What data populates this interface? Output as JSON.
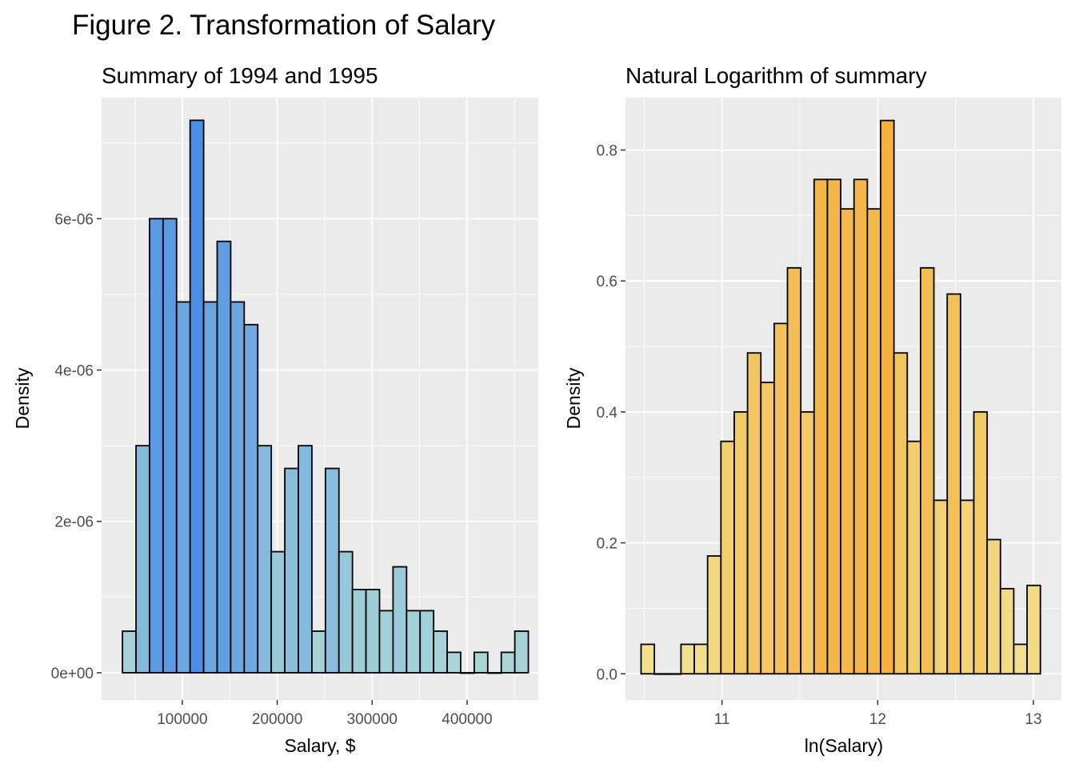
{
  "figure_title": "Figure 2. Transformation of Salary",
  "colors": {
    "panel_bg": "#ebebeb",
    "grid": "#ffffff",
    "bar_outline": "#000000",
    "left_low": "#add8d6",
    "left_high": "#4a8ee6",
    "right_low": "#f0e290",
    "right_high": "#f5b040"
  },
  "chart_data": [
    {
      "type": "bar",
      "histogram": true,
      "title": "Summary of 1994 and 1995",
      "xlabel": "Salary, $",
      "ylabel": "Density",
      "xlim": [
        15000,
        475000
      ],
      "ylim": [
        -3.6e-07,
        7.6e-06
      ],
      "xticks": [
        100000,
        200000,
        300000,
        400000
      ],
      "xtick_labels": [
        "100000",
        "200000",
        "300000",
        "400000"
      ],
      "yticks": [
        0,
        2e-06,
        4e-06,
        6e-06
      ],
      "ytick_labels": [
        "0e+00",
        "2e-06",
        "4e-06",
        "6e-06"
      ],
      "grid": true,
      "fill_gradient": [
        "#add8d6",
        "#4a8ee6"
      ],
      "bin_width": 14250,
      "bin_start": 37000,
      "values": [
        5.5e-07,
        3e-06,
        6e-06,
        6e-06,
        4.9e-06,
        7.3e-06,
        4.9e-06,
        5.7e-06,
        4.9e-06,
        4.6e-06,
        3e-06,
        1.6e-06,
        2.7e-06,
        3e-06,
        5.5e-07,
        2.7e-06,
        1.6e-06,
        1.1e-06,
        1.1e-06,
        8.2e-07,
        1.4e-06,
        8.2e-07,
        8.2e-07,
        5.5e-07,
        2.7e-07,
        0,
        2.7e-07,
        0,
        2.7e-07,
        5.5e-07
      ]
    },
    {
      "type": "bar",
      "histogram": true,
      "title": "Natural Logarithm of summary",
      "xlabel": "ln(Salary)",
      "ylabel": "Density",
      "xlim": [
        10.38,
        13.18
      ],
      "ylim": [
        -0.04,
        0.88
      ],
      "xticks": [
        11,
        12,
        13
      ],
      "xtick_labels": [
        "11",
        "12",
        "13"
      ],
      "yticks": [
        0,
        0.2,
        0.4,
        0.6,
        0.8
      ],
      "ytick_labels": [
        "0.0",
        "0.2",
        "0.4",
        "0.6",
        "0.8"
      ],
      "grid": true,
      "fill_gradient": [
        "#f0e290",
        "#f5b040"
      ],
      "bin_width": 0.0855,
      "bin_start": 10.48,
      "values": [
        0.045,
        0,
        0,
        0.045,
        0.045,
        0.18,
        0.355,
        0.4,
        0.49,
        0.445,
        0.535,
        0.62,
        0.4,
        0.755,
        0.755,
        0.71,
        0.755,
        0.71,
        0.845,
        0.49,
        0.355,
        0.62,
        0.265,
        0.58,
        0.265,
        0.4,
        0.205,
        0.13,
        0.045,
        0.135
      ]
    }
  ]
}
